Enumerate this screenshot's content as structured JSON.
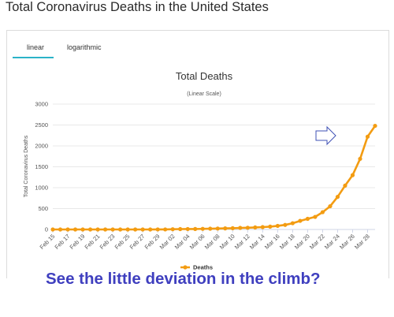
{
  "page": {
    "title": "Total Coronavirus Deaths in the United States",
    "caption": "See the little deviation in the climb?"
  },
  "tabs": [
    {
      "label": "linear",
      "active": true
    },
    {
      "label": "logarithmic",
      "active": false
    }
  ],
  "colors": {
    "series": "#f39c12",
    "tab_active": "#2bb3c8",
    "caption": "#3f3fbf",
    "arrow": "#3f51b5"
  },
  "annotation": {
    "icon": "arrow-right-icon"
  },
  "chart_data": {
    "type": "line",
    "title": "Total Deaths",
    "subtitle": "(Linear Scale)",
    "xlabel": "",
    "ylabel": "Total Coronavirus Deaths",
    "ylim": [
      0,
      3000
    ],
    "yticks": [
      0,
      500,
      1000,
      1500,
      2000,
      2500,
      3000
    ],
    "grid": true,
    "legend": "bottom",
    "x": [
      "Feb 15",
      "Feb 16",
      "Feb 17",
      "Feb 18",
      "Feb 19",
      "Feb 20",
      "Feb 21",
      "Feb 22",
      "Feb 23",
      "Feb 24",
      "Feb 25",
      "Feb 26",
      "Feb 27",
      "Feb 28",
      "Feb 29",
      "Mar 01",
      "Mar 02",
      "Mar 03",
      "Mar 04",
      "Mar 05",
      "Mar 06",
      "Mar 07",
      "Mar 08",
      "Mar 09",
      "Mar 10",
      "Mar 11",
      "Mar 12",
      "Mar 13",
      "Mar 14",
      "Mar 15",
      "Mar 16",
      "Mar 17",
      "Mar 18",
      "Mar 19",
      "Mar 20",
      "Mar 21",
      "Mar 22",
      "Mar 23",
      "Mar 24",
      "Mar 25",
      "Mar 26",
      "Mar 27",
      "Mar 28",
      "Mar 29"
    ],
    "xtick_labels": [
      "Feb 15",
      "Feb 17",
      "Feb 19",
      "Feb 21",
      "Feb 23",
      "Feb 25",
      "Feb 27",
      "Feb 29",
      "Mar 02",
      "Mar 04",
      "Mar 06",
      "Mar 08",
      "Mar 10",
      "Mar 12",
      "Mar 14",
      "Mar 16",
      "Mar 18",
      "Mar 20",
      "Mar 22",
      "Mar 24",
      "Mar 26",
      "Mar 28"
    ],
    "series": [
      {
        "name": "Deaths",
        "values": [
          0,
          0,
          0,
          0,
          0,
          0,
          0,
          0,
          0,
          0,
          0,
          0,
          0,
          0,
          1,
          1,
          6,
          9,
          11,
          12,
          15,
          19,
          22,
          26,
          30,
          38,
          41,
          49,
          57,
          68,
          86,
          109,
          150,
          206,
          255,
          301,
          414,
          555,
          780,
          1050,
          1300,
          1690,
          2220,
          2480
        ]
      }
    ]
  }
}
